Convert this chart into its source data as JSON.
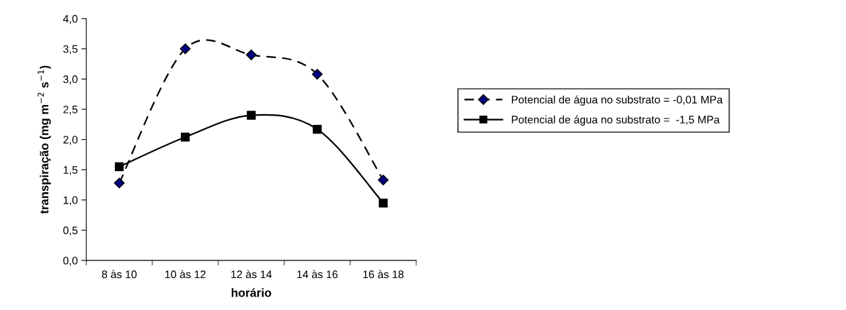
{
  "chart_data": {
    "type": "line",
    "xlabel": "horário",
    "ylabel": "transpiração (mg m$^{−2}$ s$^{−1}$)",
    "categories": [
      "8 às 10",
      "10 às 12",
      "12 às 14",
      "14 às 16",
      "16 às 18"
    ],
    "series": [
      {
        "name": "Potencial de água no substrato = -0,01 MPa",
        "color": "#000080",
        "values": [
          1.28,
          3.5,
          3.4,
          3.08,
          1.33
        ],
        "marker": "diamond",
        "line_style": "dashed"
      },
      {
        "name": "Potencial de água no substrato =  -1,5 MPa",
        "color": "#000000",
        "values": [
          1.55,
          2.04,
          2.4,
          2.17,
          0.95
        ],
        "marker": "square",
        "line_style": "solid"
      }
    ],
    "ylim": [
      0,
      4
    ],
    "yticks": [
      {
        "value": 0,
        "label": "0,0"
      },
      {
        "value": 0.5,
        "label": "0,5"
      },
      {
        "value": 1,
        "label": "1,0"
      },
      {
        "value": 1.5,
        "label": "1,5"
      },
      {
        "value": 2,
        "label": "2,0"
      },
      {
        "value": 2.5,
        "label": "2,5"
      },
      {
        "value": 3,
        "label": "3,0"
      },
      {
        "value": 3.5,
        "label": "3,5"
      },
      {
        "value": 4,
        "label": "4,0"
      }
    ],
    "grid": false,
    "legend": "right"
  }
}
